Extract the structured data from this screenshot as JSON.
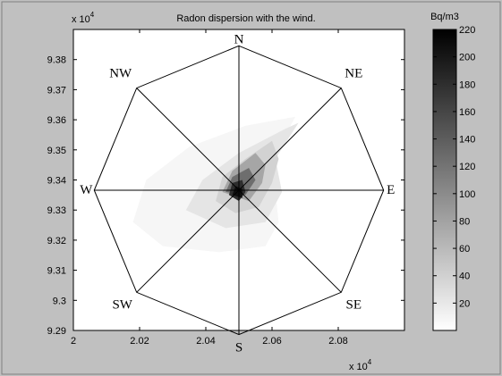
{
  "chart_data": {
    "type": "heatmap",
    "title": "Radon dispersion with the wind.",
    "x_exponent_label": "x 10",
    "x_exponent_power": "4",
    "y_exponent_label": "x 10",
    "y_exponent_power": "4",
    "xlim": [
      2.0,
      2.1
    ],
    "ylim": [
      9.29,
      9.39
    ],
    "xticks": [
      "2",
      "2.02",
      "2.04",
      "2.06",
      "2.08"
    ],
    "xtick_values": [
      2.0,
      2.02,
      2.04,
      2.06,
      2.08
    ],
    "yticks": [
      "9.29",
      "9.3",
      "9.31",
      "9.32",
      "9.33",
      "9.34",
      "9.35",
      "9.36",
      "9.37",
      "9.38"
    ],
    "ytick_values": [
      9.29,
      9.3,
      9.31,
      9.32,
      9.33,
      9.34,
      9.35,
      9.36,
      9.37,
      9.38
    ],
    "compass_center": [
      2.05,
      9.3366
    ],
    "compass_radius": 0.0437,
    "directions": [
      "N",
      "NE",
      "E",
      "SE",
      "S",
      "SW",
      "W",
      "NW"
    ],
    "colorbar": {
      "title": "Bq/m3",
      "min": 0,
      "max": 220,
      "ticks": [
        "20",
        "40",
        "60",
        "80",
        "100",
        "120",
        "140",
        "160",
        "180",
        "200",
        "220"
      ],
      "tick_values": [
        20,
        40,
        60,
        80,
        100,
        120,
        140,
        160,
        180,
        200,
        220
      ]
    },
    "contours": [
      {
        "level": 10,
        "gray": "#f6f6f6",
        "points": [
          [
            2.018,
            9.326
          ],
          [
            2.022,
            9.34
          ],
          [
            2.035,
            9.351
          ],
          [
            2.052,
            9.358
          ],
          [
            2.067,
            9.361
          ],
          [
            2.06,
            9.346
          ],
          [
            2.062,
            9.326
          ],
          [
            2.058,
            9.318
          ],
          [
            2.044,
            9.316
          ],
          [
            2.027,
            9.318
          ]
        ]
      },
      {
        "level": 25,
        "gray": "#e5e5e5",
        "points": [
          [
            2.034,
            9.33
          ],
          [
            2.039,
            9.34
          ],
          [
            2.05,
            9.349
          ],
          [
            2.064,
            9.357
          ],
          [
            2.068,
            9.359
          ],
          [
            2.061,
            9.347
          ],
          [
            2.063,
            9.336
          ],
          [
            2.058,
            9.326
          ],
          [
            2.046,
            9.324
          ]
        ]
      },
      {
        "level": 45,
        "gray": "#d2d2d2",
        "points": [
          [
            2.043,
            9.333
          ],
          [
            2.045,
            9.341
          ],
          [
            2.052,
            9.347
          ],
          [
            2.06,
            9.353
          ],
          [
            2.062,
            9.347
          ],
          [
            2.06,
            9.339
          ],
          [
            2.056,
            9.331
          ],
          [
            2.049,
            9.329
          ]
        ]
      },
      {
        "level": 75,
        "gray": "#a6a6a6",
        "points": [
          [
            2.045,
            9.336
          ],
          [
            2.048,
            9.343
          ],
          [
            2.055,
            9.349
          ],
          [
            2.058,
            9.345
          ],
          [
            2.057,
            9.339
          ],
          [
            2.053,
            9.333
          ]
        ]
      },
      {
        "level": 115,
        "gray": "#6e6e6e",
        "points": [
          [
            2.046,
            9.336
          ],
          [
            2.048,
            9.341
          ],
          [
            2.053,
            9.344
          ],
          [
            2.055,
            9.34
          ],
          [
            2.052,
            9.335
          ]
        ]
      },
      {
        "level": 170,
        "gray": "#2e2e2e",
        "points": [
          [
            2.047,
            9.335
          ],
          [
            2.048,
            9.339
          ],
          [
            2.051,
            9.34
          ],
          [
            2.052,
            9.336
          ],
          [
            2.05,
            9.333
          ]
        ]
      },
      {
        "level": 210,
        "gray": "#0e0e0e",
        "points": [
          [
            2.048,
            9.335
          ],
          [
            2.049,
            9.338
          ],
          [
            2.051,
            9.337
          ],
          [
            2.051,
            9.334
          ]
        ]
      }
    ]
  }
}
